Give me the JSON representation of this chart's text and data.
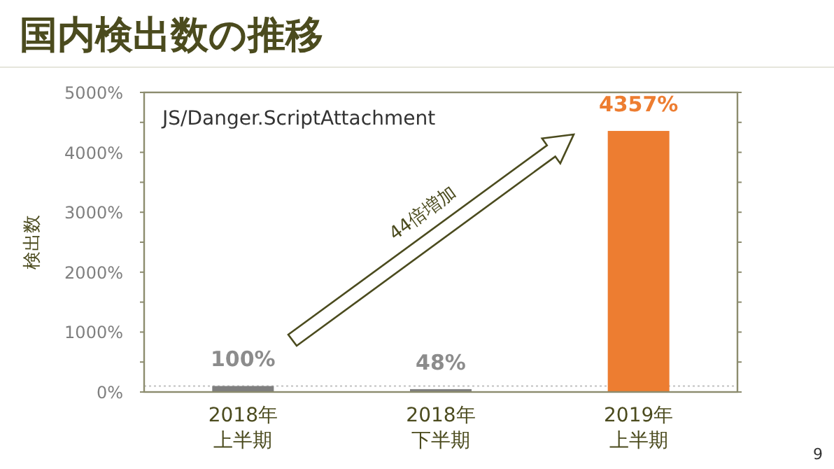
{
  "chart_data": {
    "type": "bar",
    "title": "国内検出数の推移",
    "ylabel": "検出数",
    "categories": [
      "2018年上半期",
      "2018年下半期",
      "2019年上半期"
    ],
    "values": [
      100,
      48,
      4357
    ],
    "colors": [
      "#7f7f7f",
      "#7f7f7f",
      "#ed7d31"
    ],
    "value_labels": [
      "100%",
      "48%",
      "4357%"
    ],
    "ylim": [
      0,
      5000
    ],
    "yticks": [
      {
        "value": 0,
        "label": "0%"
      },
      {
        "value": 500,
        "label": null
      },
      {
        "value": 1000,
        "label": "1000%"
      },
      {
        "value": 1500,
        "label": null
      },
      {
        "value": 2000,
        "label": "2000%"
      },
      {
        "value": 2500,
        "label": null
      },
      {
        "value": 3000,
        "label": "3000%"
      },
      {
        "value": 3500,
        "label": null
      },
      {
        "value": 4000,
        "label": "4000%"
      },
      {
        "value": 4500,
        "label": null
      },
      {
        "value": 5000,
        "label": "5000%"
      }
    ],
    "ref_lines": [
      {
        "axis": "y",
        "value": 100,
        "color": "#c0c0c0",
        "line_style": "dotted"
      }
    ],
    "annotations": [
      "JS/Danger.ScriptAttachment",
      "44倍増加",
      "9"
    ]
  }
}
